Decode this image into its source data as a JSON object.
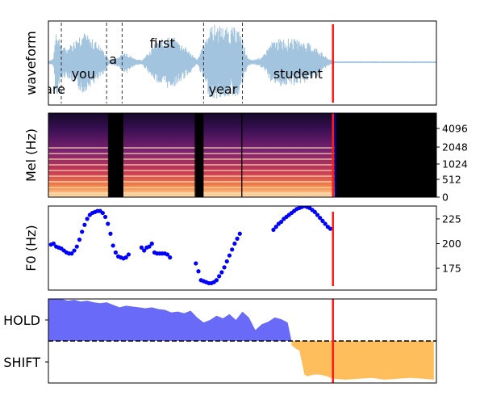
{
  "colors": {
    "waveform": "#a2c4de",
    "marker": "#ff1a1a",
    "f0_points": "#0000ff",
    "hold_fill": "#6a6af8",
    "shift_fill": "#ffbe5c",
    "word_lines": "#333333",
    "threshold_line": "#000000"
  },
  "chart_data": [
    {
      "type": "line",
      "ylabel": "waveform",
      "x_range": [
        0,
        3.0
      ],
      "marker_x": 2.2,
      "word_boundaries": [
        0.1,
        0.45,
        0.57,
        1.2,
        1.5
      ],
      "words": [
        {
          "text": "are",
          "x": 0.05,
          "level": "low"
        },
        {
          "text": "you",
          "x": 0.27,
          "level": "mid"
        },
        {
          "text": "a",
          "x": 0.5,
          "level": "upper"
        },
        {
          "text": "first",
          "x": 0.88,
          "level": "top"
        },
        {
          "text": "year",
          "x": 1.35,
          "level": "low"
        },
        {
          "text": "student",
          "x": 1.93,
          "level": "mid"
        }
      ],
      "amplitude_envelope": {
        "x": [
          0,
          0.04,
          0.06,
          0.08,
          0.1,
          0.14,
          0.2,
          0.26,
          0.32,
          0.38,
          0.44,
          0.47,
          0.52,
          0.57,
          0.6,
          0.64,
          0.68,
          0.72,
          0.76,
          0.8,
          0.86,
          0.92,
          0.98,
          1.04,
          1.1,
          1.15,
          1.2,
          1.24,
          1.28,
          1.34,
          1.4,
          1.46,
          1.5,
          1.54,
          1.58,
          1.62,
          1.66,
          1.72,
          1.8,
          1.9,
          2.0,
          2.08,
          2.14,
          2.18,
          2.22,
          3.0
        ],
        "y": [
          0.03,
          0.1,
          0.92,
          0.7,
          0.45,
          0.35,
          0.55,
          0.8,
          0.62,
          0.5,
          0.22,
          0.05,
          0.1,
          0.2,
          0.3,
          0.15,
          0.08,
          0.05,
          0.2,
          0.4,
          0.55,
          0.65,
          0.6,
          0.45,
          0.25,
          0.05,
          0.45,
          0.85,
          0.95,
          0.9,
          0.85,
          0.88,
          0.6,
          0.1,
          0.05,
          0.1,
          0.15,
          0.5,
          0.6,
          0.58,
          0.5,
          0.35,
          0.15,
          0.06,
          0.02,
          0.02
        ]
      }
    },
    {
      "type": "heatmap",
      "ylabel": "Mel (Hz)",
      "yticks": [
        "0",
        "512",
        "1024",
        "2048",
        "4096"
      ],
      "marker_x": 2.2,
      "voiced_segments": [
        [
          0.0,
          0.47
        ],
        [
          0.58,
          1.14
        ],
        [
          1.2,
          1.5
        ],
        [
          1.5,
          2.22
        ]
      ],
      "silence_from": 2.24
    },
    {
      "type": "scatter",
      "ylabel": "F0 (Hz)",
      "ylim": [
        153,
        238
      ],
      "yticks": [
        175,
        200,
        225
      ],
      "marker_x": 2.2,
      "x": [
        0.02,
        0.04,
        0.06,
        0.08,
        0.1,
        0.12,
        0.14,
        0.16,
        0.18,
        0.2,
        0.22,
        0.24,
        0.26,
        0.28,
        0.3,
        0.32,
        0.34,
        0.36,
        0.38,
        0.4,
        0.42,
        0.44,
        0.46,
        0.48,
        0.5,
        0.52,
        0.54,
        0.56,
        0.58,
        0.6,
        0.62,
        0.72,
        0.74,
        0.76,
        0.78,
        0.8,
        0.82,
        0.84,
        0.86,
        0.88,
        0.9,
        0.92,
        0.94,
        1.14,
        1.16,
        1.18,
        1.2,
        1.22,
        1.24,
        1.26,
        1.28,
        1.3,
        1.32,
        1.34,
        1.36,
        1.38,
        1.4,
        1.42,
        1.44,
        1.46,
        1.48,
        1.74,
        1.76,
        1.78,
        1.8,
        1.82,
        1.84,
        1.86,
        1.88,
        1.9,
        1.92,
        1.94,
        1.96,
        1.98,
        2.0,
        2.02,
        2.04,
        2.06,
        2.08,
        2.1,
        2.12,
        2.14,
        2.16,
        2.18
      ],
      "y": [
        199,
        200,
        197,
        196,
        195,
        193,
        191,
        190,
        190,
        193,
        197,
        204,
        212,
        219,
        225,
        229,
        231,
        232,
        233,
        233,
        231,
        227,
        220,
        210,
        198,
        191,
        187,
        186,
        185,
        186,
        189,
        196,
        193,
        196,
        197,
        200,
        191,
        190,
        190,
        190,
        190,
        189,
        186,
        180,
        172,
        163,
        162,
        161,
        160,
        160,
        161,
        163,
        167,
        171,
        176,
        182,
        188,
        194,
        200,
        205,
        210,
        214,
        217,
        220,
        222,
        225,
        227,
        229,
        231,
        233,
        235,
        236,
        237,
        238,
        237,
        236,
        234,
        232,
        229,
        226,
        223,
        220,
        217,
        215
      ],
      "dropped": false
    },
    {
      "type": "area",
      "ylabel": "",
      "yticks": [
        "HOLD",
        "SHIFT"
      ],
      "threshold": 0.5,
      "marker_x": 2.2,
      "hold_series": {
        "x": [
          0.0,
          0.05,
          0.1,
          0.15,
          0.2,
          0.25,
          0.3,
          0.35,
          0.4,
          0.45,
          0.5,
          0.55,
          0.6,
          0.65,
          0.7,
          0.75,
          0.8,
          0.85,
          0.9,
          0.95,
          1.0,
          1.05,
          1.1,
          1.15,
          1.2,
          1.25,
          1.3,
          1.35,
          1.4,
          1.45,
          1.5,
          1.55,
          1.6,
          1.65,
          1.7,
          1.75,
          1.8,
          1.85,
          1.88
        ],
        "y": [
          1.0,
          1.0,
          1.0,
          0.98,
          0.99,
          0.97,
          0.98,
          0.96,
          0.95,
          0.96,
          0.93,
          0.9,
          0.92,
          0.91,
          0.9,
          0.89,
          0.9,
          0.88,
          0.87,
          0.84,
          0.85,
          0.83,
          0.86,
          0.78,
          0.72,
          0.75,
          0.8,
          0.77,
          0.82,
          0.75,
          0.85,
          0.78,
          0.63,
          0.7,
          0.73,
          0.78,
          0.76,
          0.72,
          0.5
        ]
      },
      "shift_series": {
        "x": [
          1.88,
          1.92,
          1.94,
          1.98,
          2.0,
          2.05,
          2.1,
          2.15,
          2.2,
          2.3,
          2.4,
          2.5,
          2.6,
          2.7,
          2.8,
          2.9,
          2.98
        ],
        "y": [
          0.45,
          0.4,
          0.39,
          0.1,
          0.08,
          0.1,
          0.1,
          0.08,
          0.05,
          0.04,
          0.05,
          0.06,
          0.04,
          0.05,
          0.06,
          0.05,
          0.04
        ]
      }
    }
  ]
}
